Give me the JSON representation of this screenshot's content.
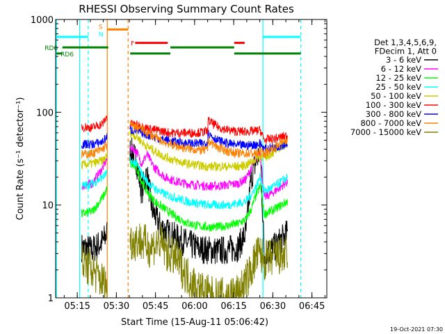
{
  "chart_data": {
    "type": "line",
    "title": "RHESSI Observing Summary Count Rates",
    "ylabel": "Count Rate (s⁻¹ detector⁻¹)",
    "xlabel": "Start Time (15-Aug-11 05:06:42)",
    "y_scale": "log",
    "ylim": [
      1,
      1000
    ],
    "xlim_minutes": [
      0,
      104
    ],
    "y_ticks": [
      {
        "value": 1,
        "label": "1"
      },
      {
        "value": 10,
        "label": "10"
      },
      {
        "value": 100,
        "label": "100"
      },
      {
        "value": 1000,
        "label": "1000"
      }
    ],
    "x_ticks": [
      {
        "minute": 8.3,
        "label": "05:15"
      },
      {
        "minute": 23.3,
        "label": "05:30"
      },
      {
        "minute": 38.3,
        "label": "05:45"
      },
      {
        "minute": 53.3,
        "label": "06:00"
      },
      {
        "minute": 68.3,
        "label": "06:15"
      },
      {
        "minute": 83.3,
        "label": "06:30"
      },
      {
        "minute": 98.3,
        "label": "06:45"
      }
    ],
    "legend": {
      "placement": "right",
      "header": [
        "Det 1,3,4,5,6,9,",
        "FDecim 1, Att 0"
      ],
      "entries": [
        {
          "label": "3 - 6 keV",
          "color": "#000000"
        },
        {
          "label": "6 - 12 keV",
          "color": "#ff00ff"
        },
        {
          "label": "12 - 25 keV",
          "color": "#00ff00"
        },
        {
          "label": "25 - 50 keV",
          "color": "#00ffff"
        },
        {
          "label": "50 - 100 keV",
          "color": "#cccc00"
        },
        {
          "label": "100 - 300 keV",
          "color": "#ff0000"
        },
        {
          "label": "300 - 800 keV",
          "color": "#0000ff"
        },
        {
          "label": "800 - 7000 keV",
          "color": "#ff8000"
        },
        {
          "label": "7000 - 15000 keV",
          "color": "#808000"
        }
      ]
    },
    "segments": [
      {
        "start": 10,
        "end": 19.8
      },
      {
        "start": 28.5,
        "end": 58.3
      },
      {
        "start": 58.3,
        "end": 78.5
      },
      {
        "start": 78.5,
        "end": 89
      }
    ],
    "series": [
      {
        "name": "3 - 6 keV",
        "color": "#000000",
        "points": [
          [
            10,
            3.5
          ],
          [
            14,
            3.3
          ],
          [
            18,
            4
          ],
          [
            19.8,
            5
          ],
          [
            28.5,
            40
          ],
          [
            31,
            30
          ],
          [
            33,
            14
          ],
          [
            35,
            22
          ],
          [
            37,
            9
          ],
          [
            40,
            6
          ],
          [
            43,
            5
          ],
          [
            48,
            4.2
          ],
          [
            52,
            3.7
          ],
          [
            55,
            3.4
          ],
          [
            58,
            3.3
          ],
          [
            62,
            3.2
          ],
          [
            66,
            3.3
          ],
          [
            70,
            3.5
          ],
          [
            73,
            5
          ],
          [
            75,
            20
          ],
          [
            77,
            30
          ],
          [
            78.5,
            38
          ],
          [
            80,
            3
          ],
          [
            84,
            3.5
          ],
          [
            89,
            5
          ]
        ]
      },
      {
        "name": "6 - 12 keV",
        "color": "#ff00ff",
        "points": [
          [
            10,
            16
          ],
          [
            14,
            17
          ],
          [
            18,
            25
          ],
          [
            19.8,
            32
          ],
          [
            28.5,
            42
          ],
          [
            31,
            38
          ],
          [
            33,
            28
          ],
          [
            35,
            35
          ],
          [
            38,
            25
          ],
          [
            42,
            20
          ],
          [
            46,
            18
          ],
          [
            50,
            17
          ],
          [
            54,
            16.5
          ],
          [
            58,
            16
          ],
          [
            62,
            16
          ],
          [
            66,
            16.5
          ],
          [
            70,
            17
          ],
          [
            73,
            19
          ],
          [
            75,
            25
          ],
          [
            77,
            32
          ],
          [
            78.5,
            38
          ],
          [
            80,
            12
          ],
          [
            84,
            14
          ],
          [
            89,
            18
          ]
        ]
      },
      {
        "name": "12 - 25 keV",
        "color": "#00ff00",
        "points": [
          [
            10,
            8
          ],
          [
            14,
            8.5
          ],
          [
            18,
            12
          ],
          [
            19.8,
            15
          ],
          [
            28.5,
            28
          ],
          [
            31,
            25
          ],
          [
            33,
            18
          ],
          [
            35,
            14
          ],
          [
            38,
            11
          ],
          [
            42,
            9
          ],
          [
            46,
            7.5
          ],
          [
            50,
            6.5
          ],
          [
            54,
            6
          ],
          [
            58,
            5.8
          ],
          [
            62,
            5.8
          ],
          [
            66,
            6
          ],
          [
            70,
            6.3
          ],
          [
            73,
            7
          ],
          [
            75,
            9
          ],
          [
            77,
            13
          ],
          [
            78.5,
            16
          ],
          [
            80,
            8
          ],
          [
            84,
            9
          ],
          [
            89,
            11
          ]
        ]
      },
      {
        "name": "25 - 50 keV",
        "color": "#00ffff",
        "points": [
          [
            10,
            16
          ],
          [
            14,
            17
          ],
          [
            18,
            20
          ],
          [
            19.8,
            22
          ],
          [
            28.5,
            30
          ],
          [
            31,
            28
          ],
          [
            33,
            22
          ],
          [
            35,
            18
          ],
          [
            38,
            15
          ],
          [
            42,
            13
          ],
          [
            46,
            12
          ],
          [
            50,
            11
          ],
          [
            54,
            10.5
          ],
          [
            58,
            10
          ],
          [
            62,
            10
          ],
          [
            66,
            10
          ],
          [
            70,
            10.5
          ],
          [
            73,
            11
          ],
          [
            75,
            13
          ],
          [
            77,
            16
          ],
          [
            78.5,
            20
          ],
          [
            80,
            14
          ],
          [
            84,
            16
          ],
          [
            89,
            20
          ]
        ]
      },
      {
        "name": "50 - 100 keV",
        "color": "#cccc00",
        "points": [
          [
            10,
            27
          ],
          [
            14,
            28
          ],
          [
            18,
            30
          ],
          [
            19.8,
            34
          ],
          [
            28.5,
            60
          ],
          [
            31,
            55
          ],
          [
            34,
            45
          ],
          [
            38,
            38
          ],
          [
            42,
            33
          ],
          [
            46,
            30
          ],
          [
            50,
            28
          ],
          [
            54,
            27
          ],
          [
            58,
            26
          ],
          [
            62,
            26
          ],
          [
            66,
            26
          ],
          [
            70,
            26
          ],
          [
            73,
            27
          ],
          [
            75,
            29
          ],
          [
            77,
            32
          ],
          [
            78.5,
            34
          ],
          [
            80,
            32
          ],
          [
            84,
            38
          ],
          [
            89,
            48
          ]
        ]
      },
      {
        "name": "100 - 300 keV",
        "color": "#ff0000",
        "points": [
          [
            10,
            70
          ],
          [
            14,
            68
          ],
          [
            18,
            75
          ],
          [
            19.8,
            90
          ],
          [
            28.5,
            75
          ],
          [
            32,
            72
          ],
          [
            36,
            66
          ],
          [
            40,
            63
          ],
          [
            44,
            60
          ],
          [
            48,
            60
          ],
          [
            52,
            60
          ],
          [
            56,
            61
          ],
          [
            58.3,
            62
          ],
          [
            58.3,
            82
          ],
          [
            62,
            70
          ],
          [
            66,
            64
          ],
          [
            70,
            62
          ],
          [
            74,
            62
          ],
          [
            77,
            63
          ],
          [
            78.5,
            64
          ],
          [
            80,
            50
          ],
          [
            84,
            52
          ],
          [
            89,
            56
          ]
        ]
      },
      {
        "name": "300 - 800 keV",
        "color": "#0000ff",
        "points": [
          [
            10,
            45
          ],
          [
            14,
            45
          ],
          [
            18,
            48
          ],
          [
            19.8,
            55
          ],
          [
            28.5,
            65
          ],
          [
            32,
            62
          ],
          [
            36,
            56
          ],
          [
            40,
            52
          ],
          [
            44,
            49
          ],
          [
            48,
            47
          ],
          [
            52,
            46
          ],
          [
            56,
            46
          ],
          [
            58.3,
            47
          ],
          [
            58.3,
            60
          ],
          [
            62,
            50
          ],
          [
            66,
            46
          ],
          [
            70,
            44
          ],
          [
            74,
            44
          ],
          [
            77,
            45
          ],
          [
            78.5,
            46
          ],
          [
            80,
            40
          ],
          [
            84,
            42
          ],
          [
            89,
            46
          ]
        ]
      },
      {
        "name": "800 - 7000 keV",
        "color": "#ff8000",
        "points": [
          [
            10,
            35
          ],
          [
            14,
            36
          ],
          [
            18,
            40
          ],
          [
            19.8,
            45
          ],
          [
            28.5,
            72
          ],
          [
            32,
            68
          ],
          [
            36,
            58
          ],
          [
            40,
            50
          ],
          [
            44,
            45
          ],
          [
            48,
            42
          ],
          [
            52,
            40
          ],
          [
            56,
            39
          ],
          [
            58.3,
            39
          ],
          [
            58.3,
            50
          ],
          [
            62,
            42
          ],
          [
            66,
            38
          ],
          [
            70,
            36
          ],
          [
            74,
            36
          ],
          [
            77,
            36
          ],
          [
            78.5,
            37
          ],
          [
            80,
            36
          ],
          [
            84,
            42
          ],
          [
            89,
            52
          ]
        ]
      },
      {
        "name": "7000 - 15000 keV",
        "color": "#808000",
        "points": [
          [
            10,
            2.5
          ],
          [
            14,
            2
          ],
          [
            18,
            1.5
          ],
          [
            19.8,
            1.3
          ],
          [
            28.5,
            4
          ],
          [
            32,
            4.2
          ],
          [
            36,
            3.5
          ],
          [
            40,
            4
          ],
          [
            43,
            3
          ],
          [
            46,
            2.7
          ],
          [
            50,
            1.8
          ],
          [
            54,
            1.3
          ],
          [
            58,
            1.1
          ],
          [
            62,
            1
          ],
          [
            66,
            1.05
          ],
          [
            70,
            1.1
          ],
          [
            73,
            1.5
          ],
          [
            75,
            2
          ],
          [
            77,
            2.8
          ],
          [
            78.5,
            3
          ],
          [
            80,
            2.5
          ],
          [
            84,
            2.8
          ],
          [
            89,
            2.8
          ]
        ]
      }
    ],
    "vertical_lines": [
      {
        "minute": 0.3,
        "color": "#00ffff",
        "style": "solid"
      },
      {
        "minute": 9.2,
        "color": "#00ffff",
        "style": "solid"
      },
      {
        "minute": 12.5,
        "color": "#00ffff",
        "style": "dashed"
      },
      {
        "minute": 19.8,
        "color": "#ff8000",
        "style": "solid"
      },
      {
        "minute": 27.8,
        "color": "#ff8000",
        "style": "dashed"
      },
      {
        "minute": 79.5,
        "color": "#00ffff",
        "style": "solid"
      },
      {
        "minute": 94,
        "color": "#00ffff",
        "style": "dashed"
      }
    ],
    "top_bars": [
      {
        "color": "#00ffff",
        "start": 0.3,
        "end": 12.5,
        "level": 650
      },
      {
        "color": "#ff8000",
        "start": 19.8,
        "end": 27.8,
        "level": 780
      },
      {
        "color": "#ff0000",
        "start": 30.5,
        "end": 43,
        "level": 560
      },
      {
        "color": "#ff0000",
        "start": 68.5,
        "end": 72.5,
        "level": 560
      },
      {
        "color": "#00ffff",
        "start": 79.5,
        "end": 94,
        "level": 650
      },
      {
        "color": "#008000",
        "start": 2.6,
        "end": 20.2,
        "level": 500
      },
      {
        "color": "#008000",
        "start": 0.3,
        "end": 2.6,
        "level": 430
      },
      {
        "color": "#008000",
        "start": 28.6,
        "end": 44,
        "level": 430
      },
      {
        "color": "#008000",
        "start": 44,
        "end": 68.5,
        "level": 500
      },
      {
        "color": "#008000",
        "start": 68.5,
        "end": 94,
        "level": 430
      }
    ],
    "annotations": [
      {
        "text": "S",
        "color": "#ff8000",
        "minute": 16.5,
        "value": 850
      },
      {
        "text": "N",
        "color": "#00ffff",
        "minute": 16.5,
        "value": 700
      },
      {
        "text": "F",
        "color": "#ff0000",
        "minute": 28.8,
        "value": 560
      },
      {
        "text": "RD6",
        "color": "#008000",
        "minute": -4.2,
        "value": 500
      },
      {
        "text": "RD6",
        "color": "#008000",
        "minute": 1.9,
        "value": 430
      }
    ],
    "footer": "19-Oct-2021 07:30"
  }
}
